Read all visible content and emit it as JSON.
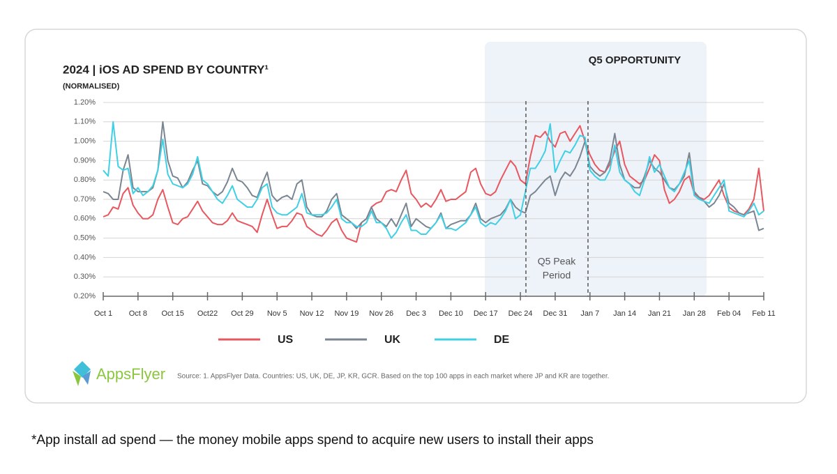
{
  "chart_data": {
    "type": "line",
    "title": "2024 | iOS AD SPEND BY COUNTRY¹",
    "subtitle": "(NORMALISED)",
    "annotations": [
      "Q5 OPPORTUNITY",
      "Q5 Peak",
      "Period"
    ],
    "categories": [
      "Oct 1",
      null,
      null,
      null,
      null,
      null,
      null,
      "Oct 8",
      null,
      null,
      null,
      null,
      null,
      null,
      "Oct 15",
      null,
      null,
      null,
      null,
      null,
      null,
      "Oct22",
      null,
      null,
      null,
      null,
      null,
      null,
      "Oct 29",
      null,
      null,
      null,
      null,
      null,
      null,
      "Nov 5",
      null,
      null,
      null,
      null,
      null,
      null,
      "Nov 12",
      null,
      null,
      null,
      null,
      null,
      null,
      "Nov 19",
      null,
      null,
      null,
      null,
      null,
      null,
      "Nov 26",
      null,
      null,
      null,
      null,
      null,
      null,
      "Dec 3",
      null,
      null,
      null,
      null,
      null,
      null,
      "Dec 10",
      null,
      null,
      null,
      null,
      null,
      null,
      "Dec 17",
      null,
      null,
      null,
      null,
      null,
      null,
      "Dec 24",
      null,
      null,
      null,
      null,
      null,
      null,
      "Dec 31",
      null,
      null,
      null,
      null,
      null,
      null,
      "Jan 7",
      null,
      null,
      null,
      null,
      null,
      null,
      "Jan 14",
      null,
      null,
      null,
      null,
      null,
      null,
      "Jan 21",
      null,
      null,
      null,
      null,
      null,
      null,
      "Jan 28",
      null,
      null,
      null,
      null,
      null,
      null,
      "Feb 04",
      null,
      null,
      null,
      null,
      null,
      null,
      "Feb 11"
    ],
    "series": [
      {
        "name": "US",
        "color": "#e8575f",
        "values": [
          0.61,
          0.62,
          0.66,
          0.65,
          0.73,
          0.76,
          0.67,
          0.63,
          0.6,
          0.6,
          0.62,
          0.7,
          0.75,
          0.66,
          0.58,
          0.57,
          0.6,
          0.61,
          0.65,
          0.69,
          0.64,
          0.61,
          0.58,
          0.57,
          0.57,
          0.59,
          0.63,
          0.59,
          0.58,
          0.57,
          0.56,
          0.53,
          0.62,
          0.7,
          0.62,
          0.55,
          0.56,
          0.56,
          0.59,
          0.63,
          0.62,
          0.56,
          0.54,
          0.52,
          0.51,
          0.54,
          0.58,
          0.6,
          0.54,
          0.5,
          0.49,
          0.48,
          0.58,
          0.6,
          0.66,
          0.68,
          0.69,
          0.74,
          0.75,
          0.74,
          0.8,
          0.85,
          0.73,
          0.7,
          0.66,
          0.68,
          0.66,
          0.7,
          0.75,
          0.69,
          0.7,
          0.7,
          0.72,
          0.74,
          0.84,
          0.86,
          0.78,
          0.73,
          0.72,
          0.74,
          0.8,
          0.85,
          0.9,
          0.87,
          0.8,
          0.78,
          0.92,
          1.03,
          1.02,
          1.05,
          1.0,
          0.97,
          1.04,
          1.05,
          1.0,
          1.04,
          1.08,
          1.0,
          0.93,
          0.88,
          0.85,
          0.84,
          0.88,
          0.95,
          1.0,
          0.88,
          0.82,
          0.8,
          0.78,
          0.8,
          0.86,
          0.93,
          0.9,
          0.75,
          0.68,
          0.7,
          0.74,
          0.8,
          0.82,
          0.73,
          0.71,
          0.7,
          0.72,
          0.76,
          0.8,
          0.72,
          0.66,
          0.64,
          0.63,
          0.62,
          0.65,
          0.7,
          0.86,
          0.64
        ]
      },
      {
        "name": "UK",
        "color": "#7a8591",
        "values": [
          0.74,
          0.73,
          0.7,
          0.7,
          0.85,
          0.93,
          0.76,
          0.74,
          0.74,
          0.74,
          0.76,
          0.85,
          1.1,
          0.9,
          0.82,
          0.81,
          0.76,
          0.79,
          0.85,
          0.9,
          0.78,
          0.77,
          0.74,
          0.72,
          0.74,
          0.79,
          0.86,
          0.8,
          0.79,
          0.76,
          0.72,
          0.71,
          0.78,
          0.84,
          0.72,
          0.69,
          0.71,
          0.72,
          0.7,
          0.78,
          0.8,
          0.66,
          0.62,
          0.61,
          0.61,
          0.64,
          0.7,
          0.73,
          0.62,
          0.6,
          0.58,
          0.55,
          0.58,
          0.6,
          0.66,
          0.6,
          0.58,
          0.56,
          0.6,
          0.56,
          0.62,
          0.68,
          0.56,
          0.6,
          0.58,
          0.56,
          0.55,
          0.58,
          0.63,
          0.55,
          0.57,
          0.58,
          0.59,
          0.59,
          0.62,
          0.68,
          0.6,
          0.58,
          0.6,
          0.61,
          0.62,
          0.65,
          0.7,
          0.66,
          0.64,
          0.63,
          0.72,
          0.74,
          0.77,
          0.8,
          0.82,
          0.72,
          0.8,
          0.84,
          0.82,
          0.86,
          0.92,
          1.0,
          0.87,
          0.84,
          0.82,
          0.84,
          0.9,
          1.04,
          0.88,
          0.8,
          0.78,
          0.76,
          0.76,
          0.82,
          0.9,
          0.86,
          0.84,
          0.8,
          0.76,
          0.75,
          0.78,
          0.82,
          0.94,
          0.74,
          0.71,
          0.69,
          0.66,
          0.68,
          0.72,
          0.78,
          0.68,
          0.66,
          0.63,
          0.62,
          0.63,
          0.64,
          0.54,
          0.55
        ]
      },
      {
        "name": "DE",
        "color": "#3fd0e6",
        "values": [
          0.85,
          0.82,
          1.1,
          0.87,
          0.85,
          0.86,
          0.73,
          0.76,
          0.72,
          0.74,
          0.77,
          0.85,
          1.01,
          0.83,
          0.78,
          0.77,
          0.76,
          0.78,
          0.83,
          0.92,
          0.8,
          0.78,
          0.74,
          0.7,
          0.68,
          0.72,
          0.77,
          0.7,
          0.68,
          0.66,
          0.66,
          0.7,
          0.76,
          0.78,
          0.66,
          0.63,
          0.62,
          0.62,
          0.64,
          0.66,
          0.73,
          0.63,
          0.62,
          0.62,
          0.62,
          0.63,
          0.66,
          0.7,
          0.6,
          0.58,
          0.58,
          0.56,
          0.56,
          0.58,
          0.64,
          0.58,
          0.58,
          0.55,
          0.5,
          0.53,
          0.58,
          0.62,
          0.54,
          0.54,
          0.52,
          0.52,
          0.55,
          0.58,
          0.62,
          0.55,
          0.55,
          0.54,
          0.56,
          0.58,
          0.62,
          0.66,
          0.58,
          0.56,
          0.58,
          0.57,
          0.6,
          0.64,
          0.7,
          0.6,
          0.62,
          0.74,
          0.86,
          0.86,
          0.9,
          0.95,
          1.09,
          0.84,
          0.9,
          0.95,
          0.94,
          0.98,
          1.03,
          1.02,
          0.85,
          0.82,
          0.8,
          0.8,
          0.85,
          0.98,
          0.84,
          0.8,
          0.78,
          0.74,
          0.72,
          0.8,
          0.92,
          0.84,
          0.88,
          0.82,
          0.76,
          0.74,
          0.78,
          0.84,
          0.9,
          0.72,
          0.7,
          0.69,
          0.68,
          0.72,
          0.76,
          0.8,
          0.64,
          0.63,
          0.62,
          0.61,
          0.64,
          0.68,
          0.62,
          0.64
        ]
      }
    ],
    "ylim": [
      0.2,
      1.2
    ],
    "yticks": [
      {
        "value": 0.2,
        "label": "0.20%"
      },
      {
        "value": 0.3,
        "label": "0.30%"
      },
      {
        "value": 0.4,
        "label": "0.40%"
      },
      {
        "value": 0.5,
        "label": "0.50%"
      },
      {
        "value": 0.6,
        "label": "0.60%"
      },
      {
        "value": 0.7,
        "label": "0.70%"
      },
      {
        "value": 0.8,
        "label": "0.80%"
      },
      {
        "value": 0.9,
        "label": "0.90%"
      },
      {
        "value": 1.0,
        "label": "1.00%"
      },
      {
        "value": 1.1,
        "label": "1.10%"
      },
      {
        "value": 1.2,
        "label": "1.20%"
      }
    ],
    "grid": true,
    "legend": "bottom"
  },
  "page": {
    "logo": "AppsFlyer",
    "source": "Source: 1. AppsFlyer Data. Countries: US, UK, DE, JP, KR, GCR. Based on the top 100 apps in each market where JP and KR are together.",
    "footnote": "*App install ad spend — the money mobile apps spend to acquire new users to install their apps"
  }
}
